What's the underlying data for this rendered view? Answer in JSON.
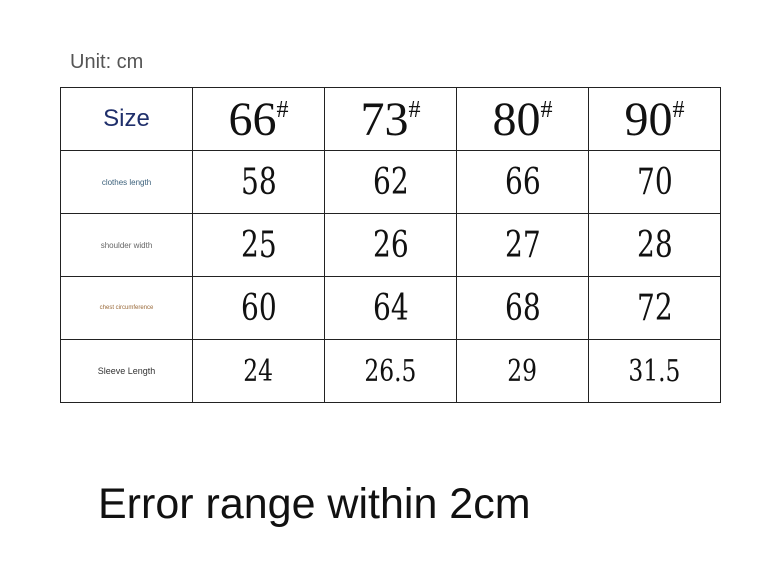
{
  "unit_label": "Unit: cm",
  "table": {
    "header_label": "Size",
    "sizes": [
      {
        "n": "66",
        "m": "#"
      },
      {
        "n": "73",
        "m": "#"
      },
      {
        "n": "80",
        "m": "#"
      },
      {
        "n": "90",
        "m": "#"
      }
    ],
    "rows": [
      {
        "label": "clothes length",
        "values": [
          "58",
          "62",
          "66",
          "70"
        ]
      },
      {
        "label": "shoulder width",
        "values": [
          "25",
          "26",
          "27",
          "28"
        ]
      },
      {
        "label": "chest circumference",
        "values": [
          "60",
          "64",
          "68",
          "72"
        ]
      },
      {
        "label": "Sleeve Length",
        "values": [
          "24",
          "26.5",
          "29",
          "31.5"
        ]
      }
    ]
  },
  "note": "Error range within 2cm"
}
